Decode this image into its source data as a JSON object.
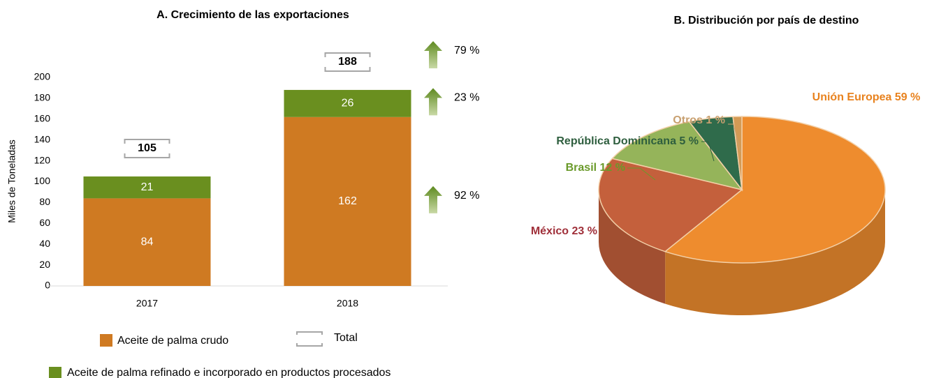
{
  "chart_data": [
    {
      "type": "bar",
      "title": "A. Crecimiento de las exportaciones",
      "y_label": "Miles de Toneladas",
      "categories": [
        "2017",
        "2018"
      ],
      "series": [
        {
          "name": "Aceite de palma crudo",
          "color": "#cf7a22",
          "values": [
            84,
            162
          ]
        },
        {
          "name": "Aceite de palma refinado e incorporado en productos procesados",
          "color": "#6a8f1f",
          "values": [
            21,
            26
          ]
        }
      ],
      "totals": {
        "name": "Total",
        "values": [
          105,
          188
        ]
      },
      "growth": {
        "values": [
          92,
          23,
          79
        ],
        "value_labels": [
          "92 %",
          "23 %",
          "79 %"
        ]
      },
      "ylim": [
        0,
        200
      ],
      "yticks": [
        0,
        20,
        40,
        60,
        80,
        100,
        120,
        140,
        160,
        180,
        200
      ]
    },
    {
      "type": "pie",
      "title": "B. Distribución por país de destino",
      "categories": [
        "Unión Europea",
        "México",
        "Brasil",
        "República Dominicana",
        "Otros"
      ],
      "values": [
        59,
        23,
        12,
        5,
        1
      ],
      "value_labels": [
        "59 %",
        "23 %",
        "12 %",
        "5 %",
        "1 %"
      ],
      "colors": [
        "#ee8c2e",
        "#c4603c",
        "#95b45a",
        "#2f6b4b",
        "#d49a55"
      ],
      "label_colors": [
        "#e8821e",
        "#a0303a",
        "#6a9a2a",
        "#2e5e3e",
        "#c8a070"
      ]
    }
  ]
}
